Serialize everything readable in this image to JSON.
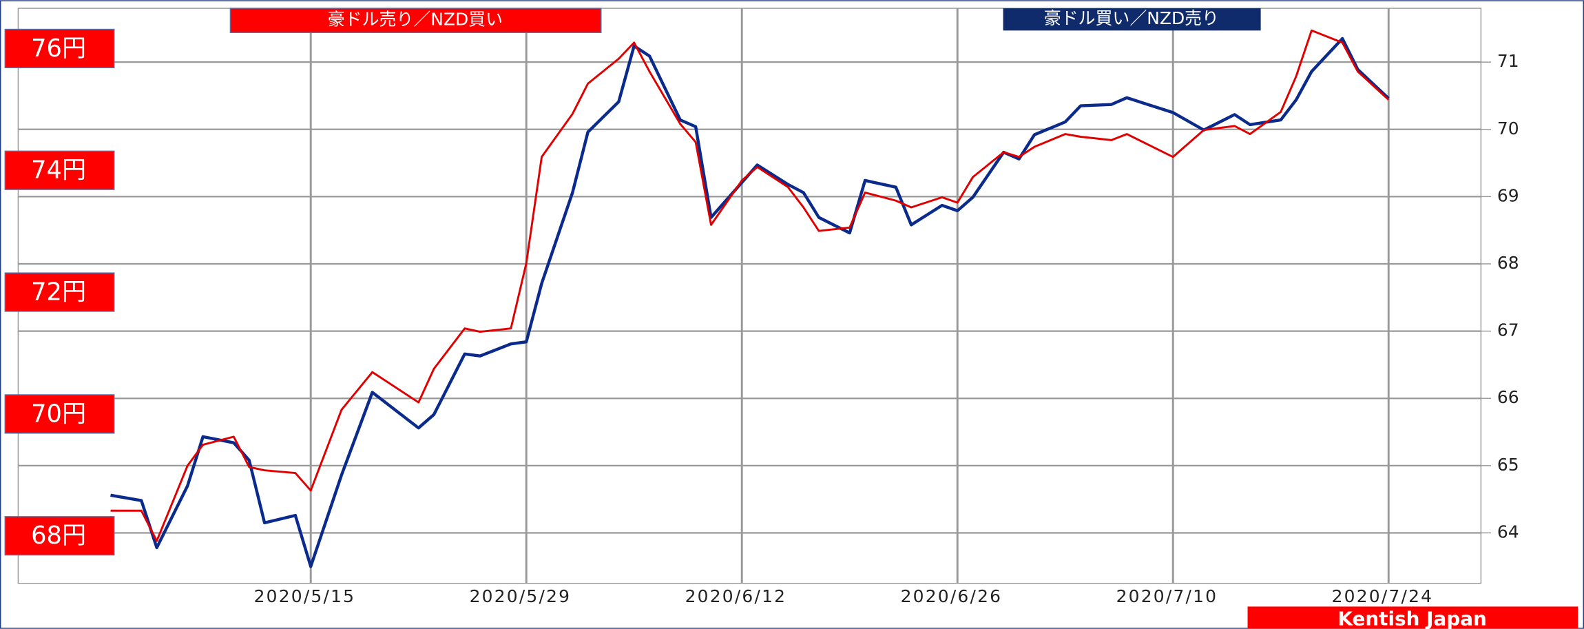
{
  "chart_data": {
    "type": "line",
    "annotations": [
      "豪ドル売り／NZD買い",
      "豪ドル買い／NZD売り",
      "Kentish Japan"
    ],
    "x": [
      "2020/5/2",
      "2020/5/4",
      "2020/5/5",
      "2020/5/7",
      "2020/5/8",
      "2020/5/10",
      "2020/5/11",
      "2020/5/12",
      "2020/5/14",
      "2020/5/15",
      "2020/5/17",
      "2020/5/19",
      "2020/5/22",
      "2020/5/23",
      "2020/5/25",
      "2020/5/26",
      "2020/5/28",
      "2020/5/29",
      "2020/5/30",
      "2020/6/1",
      "2020/6/2",
      "2020/6/4",
      "2020/6/5",
      "2020/6/6",
      "2020/6/8",
      "2020/6/9",
      "2020/6/10",
      "2020/6/12",
      "2020/6/13",
      "2020/6/15",
      "2020/6/16",
      "2020/6/17",
      "2020/6/19",
      "2020/6/20",
      "2020/6/22",
      "2020/6/23",
      "2020/6/25",
      "2020/6/26",
      "2020/6/27",
      "2020/6/29",
      "2020/6/30",
      "2020/7/1",
      "2020/7/3",
      "2020/7/4",
      "2020/7/6",
      "2020/7/7",
      "2020/7/10",
      "2020/7/12",
      "2020/7/14",
      "2020/7/15",
      "2020/7/17",
      "2020/7/18",
      "2020/7/19",
      "2020/7/21",
      "2020/7/22",
      "2020/7/24"
    ],
    "series": [
      {
        "color": "#0a2a8c",
        "values": [
          64.56,
          64.48,
          63.78,
          64.7,
          65.43,
          65.34,
          65.08,
          64.15,
          64.26,
          63.5,
          64.86,
          66.09,
          65.56,
          65.76,
          66.66,
          66.63,
          66.81,
          66.84,
          67.71,
          69.06,
          69.96,
          70.41,
          71.24,
          71.09,
          70.14,
          70.04,
          68.69,
          69.21,
          69.47,
          69.18,
          69.06,
          68.69,
          68.46,
          69.24,
          69.14,
          68.58,
          68.87,
          68.79,
          68.99,
          69.66,
          69.56,
          69.92,
          70.11,
          70.35,
          70.37,
          70.47,
          70.25,
          69.99,
          70.22,
          70.07,
          70.14,
          70.44,
          70.86,
          71.35,
          70.89,
          70.46
        ]
      },
      {
        "color": "#e00000",
        "values": [
          64.33,
          64.33,
          63.88,
          65.0,
          65.31,
          65.43,
          64.98,
          64.93,
          64.89,
          64.63,
          65.83,
          66.39,
          65.94,
          66.44,
          67.04,
          66.99,
          67.04,
          68.01,
          69.59,
          70.23,
          70.68,
          71.05,
          71.29,
          70.86,
          70.08,
          69.81,
          68.58,
          69.24,
          69.44,
          69.14,
          68.84,
          68.49,
          68.54,
          69.06,
          68.94,
          68.84,
          68.99,
          68.91,
          69.29,
          69.66,
          69.59,
          69.74,
          69.93,
          69.89,
          69.84,
          69.93,
          69.59,
          69.99,
          70.05,
          69.93,
          70.26,
          70.79,
          71.47,
          71.29,
          70.86,
          70.44
        ]
      }
    ],
    "xlim": [
      "2020/4/26",
      "2020/7/30"
    ],
    "xticks": [
      "2020/5/15",
      "2020/5/29",
      "2020/6/12",
      "2020/6/26",
      "2020/7/10",
      "2020/7/24"
    ],
    "ylim": [
      63.25,
      71.8
    ],
    "yticks": [
      64,
      65,
      66,
      67,
      68,
      69,
      70,
      71
    ],
    "y2lim": [
      67.22,
      76.66
    ],
    "y2ticks": [
      {
        "value": 68,
        "label": "68円"
      },
      {
        "value": 70,
        "label": "70円"
      },
      {
        "value": 72,
        "label": "72円"
      },
      {
        "value": 74,
        "label": "74円"
      },
      {
        "value": 76,
        "label": "76円"
      }
    ],
    "grid": true
  }
}
